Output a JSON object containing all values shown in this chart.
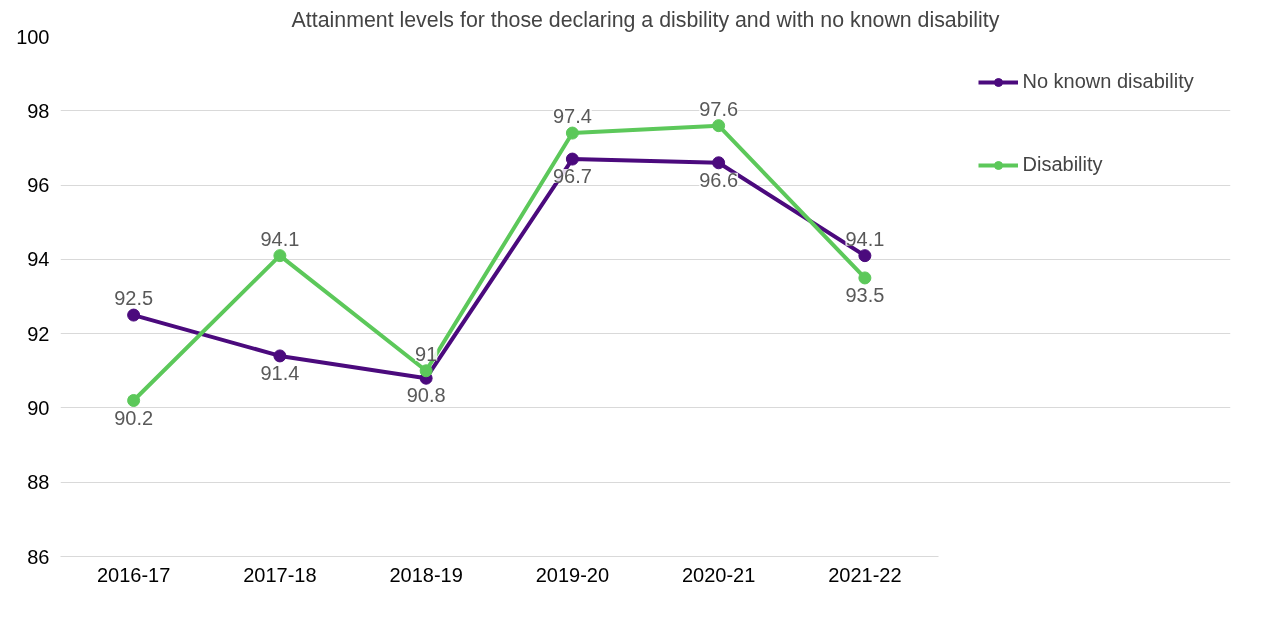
{
  "chart_data": {
    "type": "line",
    "title": "Attainment levels for those declaring a disbility and with no known disability",
    "categories": [
      "2016-17",
      "2017-18",
      "2018-19",
      "2019-20",
      "2020-21",
      "2021-22"
    ],
    "series": [
      {
        "name": "No known disability",
        "color": "#4b0a7d",
        "values": [
          92.5,
          91.4,
          90.8,
          96.7,
          96.6,
          94.1
        ]
      },
      {
        "name": "Disability",
        "color": "#5cc85a",
        "values": [
          90.2,
          94.1,
          91,
          97.4,
          97.6,
          93.5
        ]
      }
    ],
    "ylim": [
      86,
      100
    ],
    "yticks": [
      86,
      88,
      90,
      92,
      94,
      96,
      98,
      100
    ],
    "grid": "y",
    "legend": "right",
    "marker": "circle",
    "line_style": "solid",
    "data_labels": true
  }
}
